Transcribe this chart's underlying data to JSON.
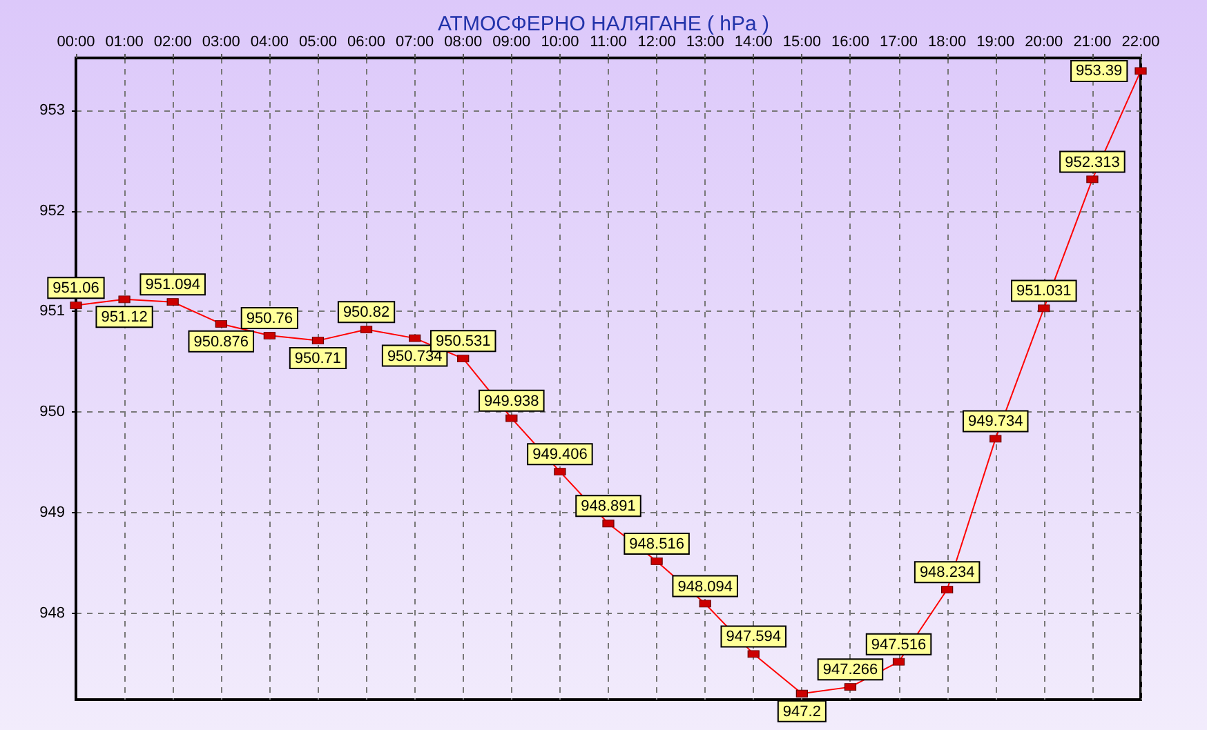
{
  "chart_data": {
    "type": "line",
    "title": "АТМОСФЕРНО НАЛЯГАНЕ ( hPa )",
    "categories": [
      "00:00",
      "01:00",
      "02:00",
      "03:00",
      "04:00",
      "05:00",
      "06:00",
      "07:00",
      "08:00",
      "09:00",
      "10:00",
      "11:00",
      "12:00",
      "13:00",
      "14:00",
      "15:00",
      "16:00",
      "17:00",
      "18:00",
      "19:00",
      "20:00",
      "21:00",
      "22:00"
    ],
    "series": [
      {
        "color": "#ff0000",
        "values": [
          951.06,
          951.12,
          951.094,
          950.876,
          950.76,
          950.71,
          950.82,
          950.734,
          950.531,
          949.938,
          949.406,
          948.891,
          948.516,
          948.094,
          947.594,
          947.2,
          947.266,
          947.516,
          948.234,
          949.734,
          951.031,
          952.313,
          953.39
        ]
      }
    ],
    "ylim": [
      947.14,
      953.52
    ],
    "yticks": [
      948,
      949,
      950,
      951,
      952,
      953
    ],
    "grid": true,
    "marker": "square",
    "line_style": "solid",
    "data_labels": true
  }
}
